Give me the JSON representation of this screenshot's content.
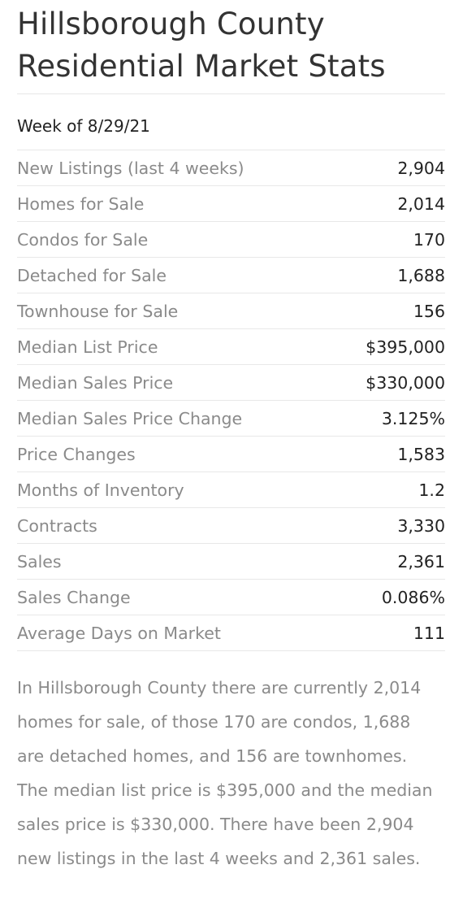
{
  "title_line1": "Hillsborough County",
  "title_line2": "Residential Market Stats",
  "week": "Week of 8/29/21",
  "stats": [
    {
      "label": "New Listings (last 4 weeks)",
      "value": "2,904"
    },
    {
      "label": "Homes for Sale",
      "value": "2,014"
    },
    {
      "label": "Condos for Sale",
      "value": "170"
    },
    {
      "label": "Detached for Sale",
      "value": "1,688"
    },
    {
      "label": "Townhouse for Sale",
      "value": "156"
    },
    {
      "label": "Median List Price",
      "value": "$395,000"
    },
    {
      "label": "Median Sales Price",
      "value": "$330,000"
    },
    {
      "label": "Median Sales Price Change",
      "value": "3.125%"
    },
    {
      "label": "Price Changes",
      "value": "1,583"
    },
    {
      "label": "Months of Inventory",
      "value": "1.2"
    },
    {
      "label": "Contracts",
      "value": "3,330"
    },
    {
      "label": "Sales",
      "value": "2,361"
    },
    {
      "label": "Sales Change",
      "value": "0.086%"
    },
    {
      "label": "Average Days on Market",
      "value": "111"
    }
  ],
  "summary": "In Hillsborough County there are currently 2,014 homes for sale, of those 170 are condos, 1,688 are detached homes, and 156 are townhomes. The median list price is $395,000 and the median sales price is $330,000. There have been 2,904 new listings in the last 4 weeks and 2,361 sales."
}
